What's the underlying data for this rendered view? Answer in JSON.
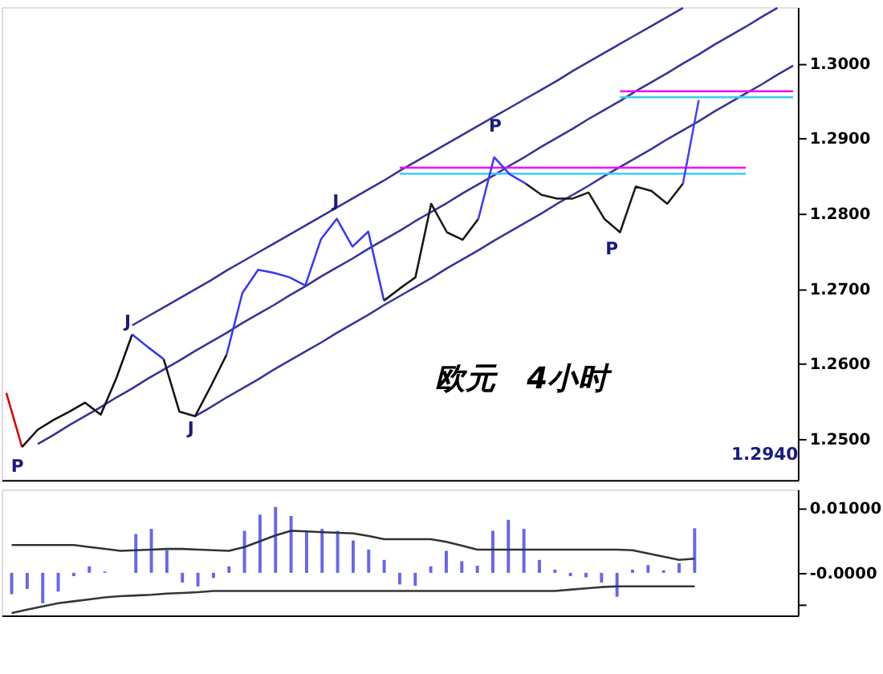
{
  "chart_data": [
    {
      "type": "line",
      "ylim": [
        1.2445,
        1.3075
      ],
      "tick_labels": "y",
      "grid": false,
      "categories": [
        null,
        null,
        null,
        null,
        null,
        null,
        null,
        null,
        null,
        null,
        null,
        null,
        null,
        null,
        null,
        null,
        null,
        null,
        null,
        null,
        null,
        null,
        null,
        null,
        null,
        null,
        null,
        null,
        null,
        null,
        null,
        null,
        null,
        null,
        null,
        null,
        null,
        null,
        null,
        null,
        null,
        null,
        null,
        null,
        null,
        null,
        null,
        null,
        null,
        null,
        null
      ],
      "yticks": [
        {
          "value": 1.25,
          "label": "1.2500"
        },
        {
          "value": 1.26,
          "label": "1.2600"
        },
        {
          "value": 1.27,
          "label": "1.2700"
        },
        {
          "value": 1.28,
          "label": "1.2800"
        },
        {
          "value": 1.29,
          "label": "1.2900"
        },
        {
          "value": 1.3,
          "label": "1.3000"
        }
      ],
      "series": [
        {
          "color": "#333399",
          "values": [
            null,
            null,
            null,
            null,
            null,
            null,
            null,
            null,
            1.2651,
            1.2663,
            1.2675,
            1.2687,
            1.2699,
            1.2711,
            1.2724,
            1.2736,
            1.2748,
            1.276,
            1.2772,
            1.2784,
            1.2796,
            1.2808,
            1.282,
            1.2832,
            1.2844,
            1.2857,
            1.2869,
            1.2881,
            1.2893,
            1.2905,
            1.2917,
            1.2929,
            1.2941,
            1.2953,
            1.2965,
            1.2977,
            1.299,
            1.3002,
            1.3014,
            1.3026,
            1.3038,
            1.305,
            1.3062,
            1.3074,
            null,
            null,
            null,
            null,
            null,
            null,
            null
          ]
        },
        {
          "color": "#343498",
          "values": [
            null,
            null,
            1.2493,
            1.2505,
            1.2518,
            1.253,
            1.2542,
            1.2555,
            1.2567,
            1.258,
            1.2592,
            1.2604,
            1.2617,
            1.2629,
            1.2641,
            1.2654,
            1.2666,
            1.2678,
            1.2691,
            1.2703,
            1.2716,
            1.2728,
            1.274,
            1.2753,
            1.2765,
            1.2777,
            1.279,
            1.2802,
            1.2814,
            1.2827,
            1.2839,
            1.2851,
            1.2864,
            1.2876,
            1.2889,
            1.2901,
            1.2913,
            1.2926,
            1.2938,
            1.295,
            1.2963,
            1.2975,
            1.2987,
            1.3,
            1.3012,
            1.3025,
            1.3037,
            1.3049,
            1.3062,
            1.3074,
            null
          ]
        },
        {
          "color": "#35359a",
          "values": [
            null,
            null,
            null,
            null,
            null,
            null,
            null,
            null,
            null,
            null,
            null,
            null,
            1.253,
            1.2542,
            1.2555,
            1.2567,
            1.2579,
            1.2592,
            1.2604,
            1.2616,
            1.2628,
            1.2641,
            1.2653,
            1.2665,
            1.2678,
            1.269,
            1.2702,
            1.2714,
            1.2727,
            1.2739,
            1.2751,
            1.2764,
            1.2776,
            1.2788,
            1.28,
            1.2813,
            1.2825,
            1.2837,
            1.285,
            1.2862,
            1.2874,
            1.2886,
            1.2899,
            1.2911,
            1.2923,
            1.2936,
            1.2948,
            1.296,
            1.2972,
            1.2985,
            1.2997
          ]
        },
        {
          "color": "#ff00ff",
          "values": [
            null,
            null,
            null,
            null,
            null,
            null,
            null,
            null,
            null,
            null,
            null,
            null,
            null,
            null,
            null,
            null,
            null,
            null,
            null,
            null,
            null,
            null,
            null,
            null,
            null,
            1.2861,
            1.2861,
            1.2861,
            1.2861,
            1.2861,
            1.2861,
            1.2861,
            1.2861,
            1.2861,
            1.2861,
            1.2861,
            1.2861,
            1.2861,
            1.2861,
            1.2861,
            1.2861,
            1.2861,
            1.2861,
            1.2861,
            1.2861,
            1.2861,
            1.2861,
            1.2861,
            null,
            null,
            null
          ]
        },
        {
          "color": "#33ccff",
          "values": [
            null,
            null,
            null,
            null,
            null,
            null,
            null,
            null,
            null,
            null,
            null,
            null,
            null,
            null,
            null,
            null,
            null,
            null,
            null,
            null,
            null,
            null,
            null,
            null,
            null,
            1.2853,
            1.2853,
            1.2853,
            1.2853,
            1.2853,
            1.2853,
            1.2853,
            1.2853,
            1.2853,
            1.2853,
            1.2853,
            1.2853,
            1.2853,
            1.2853,
            1.2853,
            1.2853,
            1.2853,
            1.2853,
            1.2853,
            1.2853,
            1.2853,
            1.2853,
            1.2853,
            null,
            null,
            null
          ]
        },
        {
          "color": "#ee11ee",
          "values": [
            null,
            null,
            null,
            null,
            null,
            null,
            null,
            null,
            null,
            null,
            null,
            null,
            null,
            null,
            null,
            null,
            null,
            null,
            null,
            null,
            null,
            null,
            null,
            null,
            null,
            null,
            null,
            null,
            null,
            null,
            null,
            null,
            null,
            null,
            null,
            null,
            null,
            null,
            null,
            1.2963,
            1.2963,
            1.2963,
            1.2963,
            1.2963,
            1.2963,
            1.2963,
            1.2963,
            1.2963,
            1.2963,
            1.2963,
            1.2963
          ]
        },
        {
          "color": "#44ccee",
          "values": [
            null,
            null,
            null,
            null,
            null,
            null,
            null,
            null,
            null,
            null,
            null,
            null,
            null,
            null,
            null,
            null,
            null,
            null,
            null,
            null,
            null,
            null,
            null,
            null,
            null,
            null,
            null,
            null,
            null,
            null,
            null,
            null,
            null,
            null,
            null,
            null,
            null,
            null,
            null,
            1.2955,
            1.2955,
            1.2955,
            1.2955,
            1.2955,
            1.2955,
            1.2955,
            1.2955,
            1.2955,
            1.2955,
            1.2955,
            1.2955
          ]
        },
        {
          "color": "#dd0000",
          "values": [
            1.2561,
            1.2489,
            null,
            null,
            null,
            null,
            null,
            null,
            null,
            null,
            null,
            null,
            null,
            null,
            null,
            null,
            null,
            null,
            null,
            null,
            null,
            null,
            null,
            null,
            null,
            null,
            null,
            null,
            null,
            null,
            null,
            null,
            null,
            null,
            null,
            null,
            null,
            null,
            null,
            null,
            null,
            null,
            null,
            null,
            null,
            null,
            null,
            null,
            null,
            null,
            null
          ]
        },
        {
          "color": "#111111",
          "values": [
            null,
            1.2489,
            1.2512,
            1.2525,
            1.2536,
            1.2548,
            1.2532,
            1.2581,
            1.2639,
            null,
            null,
            null,
            null,
            null,
            null,
            null,
            null,
            null,
            null,
            null,
            null,
            null,
            null,
            null,
            null,
            null,
            null,
            null,
            null,
            null,
            null,
            null,
            null,
            null,
            null,
            null,
            null,
            null,
            null,
            null,
            null,
            null,
            null,
            null,
            null,
            null,
            null,
            null,
            null,
            null,
            null
          ]
        },
        {
          "color": "#3333ff",
          "values": [
            null,
            null,
            null,
            null,
            null,
            null,
            null,
            null,
            1.2639,
            1.2622,
            1.2606,
            null,
            null,
            null,
            null,
            null,
            null,
            null,
            null,
            null,
            null,
            null,
            null,
            null,
            null,
            null,
            null,
            null,
            null,
            null,
            null,
            null,
            null,
            null,
            null,
            null,
            null,
            null,
            null,
            null,
            null,
            null,
            null,
            null,
            null,
            null,
            null,
            null,
            null,
            null,
            null
          ]
        },
        {
          "color": "#141414",
          "values": [
            null,
            null,
            null,
            null,
            null,
            null,
            null,
            null,
            null,
            null,
            1.2606,
            1.2536,
            1.253,
            1.257,
            1.2612,
            null,
            null,
            null,
            null,
            null,
            null,
            null,
            null,
            null,
            null,
            null,
            null,
            null,
            null,
            null,
            null,
            null,
            null,
            null,
            null,
            null,
            null,
            null,
            null,
            null,
            null,
            null,
            null,
            null,
            null,
            null,
            null,
            null,
            null,
            null,
            null
          ]
        },
        {
          "color": "#3838f8",
          "values": [
            null,
            null,
            null,
            null,
            null,
            null,
            null,
            null,
            null,
            null,
            null,
            null,
            null,
            null,
            1.2612,
            1.2694,
            1.2725,
            1.2721,
            1.2715,
            1.2704,
            1.2766,
            1.2793,
            1.2756,
            1.2776,
            1.2684,
            null,
            null,
            null,
            null,
            null,
            null,
            null,
            null,
            null,
            null,
            null,
            null,
            null,
            null,
            null,
            null,
            null,
            null,
            null,
            null,
            null,
            null,
            null,
            null,
            null,
            null
          ]
        },
        {
          "color": "#171717",
          "values": [
            null,
            null,
            null,
            null,
            null,
            null,
            null,
            null,
            null,
            null,
            null,
            null,
            null,
            null,
            null,
            null,
            null,
            null,
            null,
            null,
            null,
            null,
            null,
            null,
            1.2684,
            1.27,
            1.2715,
            1.2813,
            1.2775,
            1.2765,
            1.2793,
            null,
            null,
            null,
            null,
            null,
            null,
            null,
            null,
            null,
            null,
            null,
            null,
            null,
            null,
            null,
            null,
            null,
            null,
            null,
            null
          ]
        },
        {
          "color": "#3d3df2",
          "values": [
            null,
            null,
            null,
            null,
            null,
            null,
            null,
            null,
            null,
            null,
            null,
            null,
            null,
            null,
            null,
            null,
            null,
            null,
            null,
            null,
            null,
            null,
            null,
            null,
            null,
            null,
            null,
            null,
            null,
            null,
            1.2793,
            1.2875,
            1.2852,
            1.284,
            null,
            null,
            null,
            null,
            null,
            null,
            null,
            null,
            null,
            null,
            null,
            null,
            null,
            null,
            null,
            null,
            null
          ]
        },
        {
          "color": "#1a1a1a",
          "values": [
            null,
            null,
            null,
            null,
            null,
            null,
            null,
            null,
            null,
            null,
            null,
            null,
            null,
            null,
            null,
            null,
            null,
            null,
            null,
            null,
            null,
            null,
            null,
            null,
            null,
            null,
            null,
            null,
            null,
            null,
            null,
            null,
            null,
            1.284,
            1.2825,
            1.282,
            1.282,
            1.2828,
            1.2793,
            1.2775,
            1.2836,
            1.283,
            1.2813,
            1.284,
            null,
            null,
            null,
            null,
            null,
            null,
            null
          ]
        },
        {
          "color": "#4242ff",
          "values": [
            null,
            null,
            null,
            null,
            null,
            null,
            null,
            null,
            null,
            null,
            null,
            null,
            null,
            null,
            null,
            null,
            null,
            null,
            null,
            null,
            null,
            null,
            null,
            null,
            null,
            null,
            null,
            null,
            null,
            null,
            null,
            null,
            null,
            null,
            null,
            null,
            null,
            null,
            null,
            null,
            null,
            null,
            null,
            1.284,
            1.2951,
            null,
            null,
            null,
            null,
            null,
            null
          ]
        }
      ],
      "annotations": [
        "P",
        "J",
        "J",
        "J",
        "P",
        "P",
        "欧元　4小时",
        "1.2940"
      ]
    },
    {
      "type": "bar",
      "ylim": [
        -0.0066,
        0.0129
      ],
      "tick_labels": "y",
      "grid": false,
      "categories": [
        null,
        null,
        null,
        null,
        null,
        null,
        null,
        null,
        null,
        null,
        null,
        null,
        null,
        null,
        null,
        null,
        null,
        null,
        null,
        null,
        null,
        null,
        null,
        null,
        null,
        null,
        null,
        null,
        null,
        null,
        null,
        null,
        null,
        null,
        null,
        null,
        null,
        null,
        null,
        null,
        null,
        null,
        null,
        null,
        null,
        null,
        null,
        null,
        null,
        null,
        null
      ],
      "yticks": [
        {
          "value": 0.01,
          "label": "0.01000"
        },
        {
          "value": 0,
          "label": "-0.0000"
        },
        {
          "value": -0.005,
          "label": null
        }
      ],
      "series": [
        {
          "color": "#6666ee",
          "values": [
            -0.0033,
            -0.0025,
            -0.0047,
            -0.0029,
            -0.0005,
            0.001,
            0.0002,
            0.0,
            0.006,
            0.0068,
            0.0035,
            -0.0015,
            -0.0021,
            -0.0008,
            0.001,
            0.0065,
            0.009,
            0.0102,
            0.0088,
            0.0063,
            0.0068,
            0.0065,
            0.005,
            0.0036,
            0.002,
            -0.0018,
            -0.002,
            0.001,
            0.0034,
            0.0018,
            0.0011,
            0.0065,
            0.0082,
            0.0068,
            0.002,
            0.0005,
            -0.0005,
            -0.0007,
            -0.0015,
            -0.0037,
            0.0005,
            0.0012,
            0.0004,
            0.0015,
            0.0069,
            null,
            null,
            null,
            null,
            null,
            null
          ]
        },
        {
          "type": "line",
          "color": "#333333",
          "values": [
            0.0043,
            0.0043,
            0.0043,
            0.0043,
            0.0043,
            0.004,
            0.0037,
            0.0034,
            0.0035,
            0.0036,
            0.0037,
            0.0037,
            0.0036,
            0.0035,
            0.0034,
            0.004,
            0.0049,
            0.0058,
            0.0065,
            0.0064,
            0.0063,
            0.0062,
            0.0061,
            0.0057,
            0.0052,
            0.0052,
            0.0052,
            0.0052,
            0.0048,
            0.0042,
            0.0036,
            0.0036,
            0.0036,
            0.0036,
            0.0036,
            0.0036,
            0.0036,
            0.0036,
            0.0036,
            0.0036,
            0.0035,
            0.003,
            0.0025,
            0.002,
            0.0022,
            null,
            null,
            null,
            null,
            null,
            null
          ]
        },
        {
          "type": "line",
          "color": "#363636",
          "values": [
            -0.0062,
            -0.0057,
            -0.0052,
            -0.0047,
            -0.0044,
            -0.0041,
            -0.0038,
            -0.0036,
            -0.0035,
            -0.0034,
            -0.0032,
            -0.0031,
            -0.003,
            -0.0028,
            -0.0028,
            -0.0028,
            -0.0028,
            -0.0028,
            -0.0028,
            -0.0028,
            -0.0028,
            -0.0028,
            -0.0028,
            -0.0028,
            -0.0028,
            -0.0028,
            -0.0028,
            -0.0028,
            -0.0028,
            -0.0028,
            -0.0028,
            -0.0028,
            -0.0028,
            -0.0028,
            -0.0028,
            -0.0028,
            -0.0026,
            -0.0024,
            -0.0022,
            -0.0021,
            -0.0021,
            -0.0021,
            -0.0021,
            -0.0021,
            -0.0021,
            null,
            null,
            null,
            null,
            null,
            null
          ]
        }
      ]
    }
  ]
}
